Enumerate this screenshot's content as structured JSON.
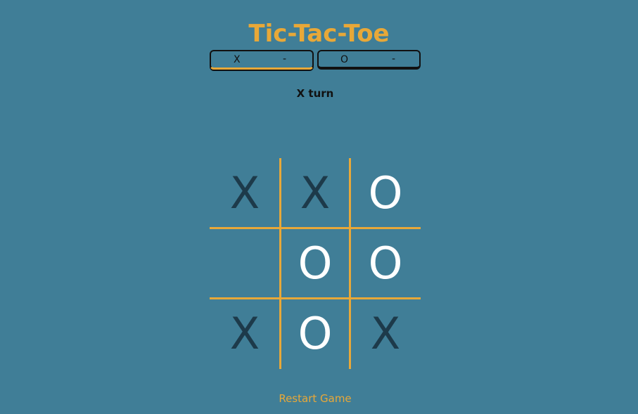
{
  "title": "Tic-Tac-Toe",
  "scores": [
    {
      "player": "X",
      "score": "-"
    },
    {
      "player": "O",
      "score": "-"
    }
  ],
  "turn": "X turn",
  "board": [
    "X",
    "X",
    "O",
    "",
    "O",
    "O",
    "X",
    "O",
    "X"
  ],
  "restart_label": "Restart Game",
  "colors": {
    "background": "#407e97",
    "accent": "#e8a838",
    "x_mark": "#1d3a4a",
    "o_mark": "#ffffff"
  }
}
